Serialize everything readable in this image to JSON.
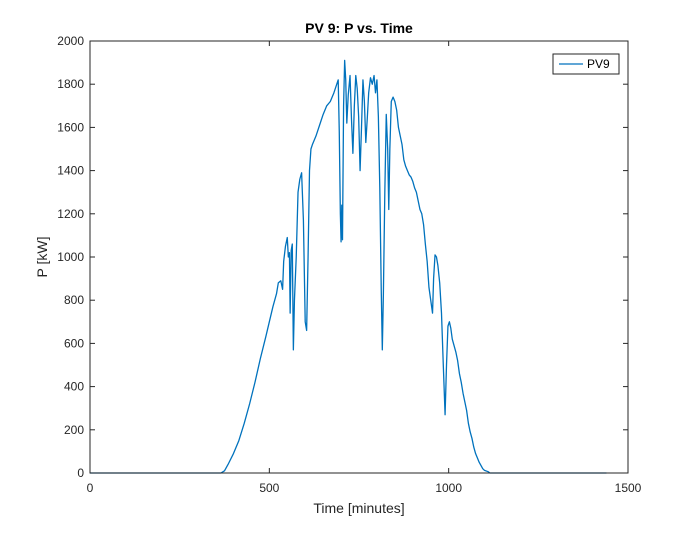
{
  "chart_data": {
    "type": "line",
    "title": "PV 9: P vs. Time",
    "xlabel": "Time [minutes]",
    "ylabel": "P [kW]",
    "xlim": [
      0,
      1500
    ],
    "ylim": [
      0,
      2000
    ],
    "xticks": [
      0,
      500,
      1000,
      1500
    ],
    "yticks": [
      0,
      200,
      400,
      600,
      800,
      1000,
      1200,
      1400,
      1600,
      1800,
      2000
    ],
    "grid": false,
    "legend_position": "top-right",
    "series": [
      {
        "name": "PV9",
        "color": "#0072BD",
        "points": [
          [
            0,
            0
          ],
          [
            350,
            0
          ],
          [
            365,
            0
          ],
          [
            375,
            10
          ],
          [
            385,
            40
          ],
          [
            400,
            90
          ],
          [
            415,
            150
          ],
          [
            430,
            230
          ],
          [
            445,
            320
          ],
          [
            460,
            420
          ],
          [
            475,
            530
          ],
          [
            490,
            630
          ],
          [
            500,
            700
          ],
          [
            510,
            770
          ],
          [
            520,
            830
          ],
          [
            525,
            880
          ],
          [
            532,
            890
          ],
          [
            537,
            850
          ],
          [
            540,
            980
          ],
          [
            545,
            1050
          ],
          [
            550,
            1090
          ],
          [
            553,
            1000
          ],
          [
            556,
            1020
          ],
          [
            558,
            740
          ],
          [
            561,
            1030
          ],
          [
            564,
            1060
          ],
          [
            567,
            570
          ],
          [
            570,
            800
          ],
          [
            575,
            1000
          ],
          [
            580,
            1300
          ],
          [
            585,
            1360
          ],
          [
            590,
            1390
          ],
          [
            595,
            1170
          ],
          [
            600,
            700
          ],
          [
            604,
            660
          ],
          [
            608,
            1000
          ],
          [
            612,
            1400
          ],
          [
            616,
            1500
          ],
          [
            620,
            1520
          ],
          [
            630,
            1560
          ],
          [
            640,
            1610
          ],
          [
            650,
            1660
          ],
          [
            660,
            1700
          ],
          [
            670,
            1720
          ],
          [
            680,
            1760
          ],
          [
            688,
            1800
          ],
          [
            692,
            1820
          ],
          [
            695,
            1580
          ],
          [
            698,
            1200
          ],
          [
            700,
            1070
          ],
          [
            702,
            1240
          ],
          [
            704,
            1080
          ],
          [
            707,
            1700
          ],
          [
            710,
            1910
          ],
          [
            713,
            1820
          ],
          [
            716,
            1620
          ],
          [
            720,
            1750
          ],
          [
            725,
            1840
          ],
          [
            729,
            1640
          ],
          [
            733,
            1480
          ],
          [
            737,
            1700
          ],
          [
            741,
            1840
          ],
          [
            745,
            1780
          ],
          [
            749,
            1650
          ],
          [
            753,
            1400
          ],
          [
            757,
            1600
          ],
          [
            761,
            1820
          ],
          [
            765,
            1720
          ],
          [
            769,
            1530
          ],
          [
            773,
            1640
          ],
          [
            777,
            1760
          ],
          [
            782,
            1830
          ],
          [
            787,
            1800
          ],
          [
            792,
            1840
          ],
          [
            796,
            1760
          ],
          [
            800,
            1820
          ],
          [
            804,
            1650
          ],
          [
            808,
            1320
          ],
          [
            812,
            850
          ],
          [
            815,
            570
          ],
          [
            818,
            830
          ],
          [
            822,
            1300
          ],
          [
            826,
            1660
          ],
          [
            830,
            1500
          ],
          [
            833,
            1220
          ],
          [
            836,
            1500
          ],
          [
            840,
            1720
          ],
          [
            845,
            1740
          ],
          [
            850,
            1720
          ],
          [
            855,
            1680
          ],
          [
            860,
            1600
          ],
          [
            865,
            1560
          ],
          [
            870,
            1520
          ],
          [
            875,
            1450
          ],
          [
            880,
            1420
          ],
          [
            885,
            1400
          ],
          [
            890,
            1380
          ],
          [
            895,
            1370
          ],
          [
            900,
            1350
          ],
          [
            905,
            1320
          ],
          [
            910,
            1300
          ],
          [
            915,
            1260
          ],
          [
            920,
            1220
          ],
          [
            925,
            1200
          ],
          [
            930,
            1150
          ],
          [
            935,
            1060
          ],
          [
            940,
            980
          ],
          [
            945,
            860
          ],
          [
            950,
            800
          ],
          [
            955,
            740
          ],
          [
            958,
            900
          ],
          [
            962,
            1010
          ],
          [
            966,
            1000
          ],
          [
            970,
            960
          ],
          [
            975,
            880
          ],
          [
            980,
            740
          ],
          [
            985,
            500
          ],
          [
            990,
            270
          ],
          [
            994,
            500
          ],
          [
            998,
            680
          ],
          [
            1002,
            700
          ],
          [
            1006,
            670
          ],
          [
            1010,
            620
          ],
          [
            1015,
            590
          ],
          [
            1020,
            560
          ],
          [
            1025,
            520
          ],
          [
            1030,
            460
          ],
          [
            1035,
            420
          ],
          [
            1040,
            370
          ],
          [
            1045,
            330
          ],
          [
            1050,
            290
          ],
          [
            1055,
            230
          ],
          [
            1060,
            190
          ],
          [
            1065,
            160
          ],
          [
            1070,
            120
          ],
          [
            1075,
            90
          ],
          [
            1080,
            70
          ],
          [
            1085,
            50
          ],
          [
            1090,
            35
          ],
          [
            1095,
            20
          ],
          [
            1100,
            12
          ],
          [
            1110,
            6
          ],
          [
            1115,
            0
          ],
          [
            1130,
            0
          ],
          [
            1440,
            0
          ]
        ]
      }
    ]
  }
}
